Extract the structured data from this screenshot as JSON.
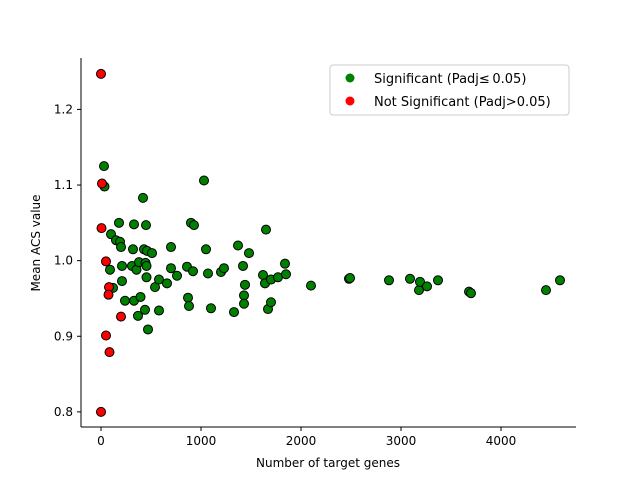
{
  "chart_data": {
    "type": "scatter",
    "xlabel": "Number of target genes",
    "ylabel": "Mean ACS value",
    "xlim": [
      -200,
      4750
    ],
    "ylim": [
      0.78,
      1.268
    ],
    "xticks": [
      0,
      1000,
      2000,
      3000,
      4000
    ],
    "yticks": [
      0.8,
      0.9,
      1.0,
      1.1,
      1.2
    ],
    "xtick_labels": [
      "0",
      "1000",
      "2000",
      "3000",
      "4000"
    ],
    "ytick_labels": [
      "0.8",
      "0.9",
      "1.0",
      "1.1",
      "1.2"
    ],
    "grid": false,
    "legend_position": "top-right",
    "series": [
      {
        "name": "Significant (Padj≤ 0.05)",
        "color": "#008000",
        "points": [
          [
            30,
            1.125
          ],
          [
            35,
            1.098
          ],
          [
            100,
            1.035
          ],
          [
            150,
            1.027
          ],
          [
            180,
            1.05
          ],
          [
            190,
            1.025
          ],
          [
            200,
            1.018
          ],
          [
            90,
            0.988
          ],
          [
            120,
            0.964
          ],
          [
            210,
            0.993
          ],
          [
            210,
            0.973
          ],
          [
            240,
            0.947
          ],
          [
            310,
            0.993
          ],
          [
            320,
            1.015
          ],
          [
            330,
            1.048
          ],
          [
            330,
            0.947
          ],
          [
            355,
            0.988
          ],
          [
            370,
            0.927
          ],
          [
            380,
            0.998
          ],
          [
            395,
            0.952
          ],
          [
            420,
            1.083
          ],
          [
            430,
            1.015
          ],
          [
            440,
            0.935
          ],
          [
            445,
            0.997
          ],
          [
            450,
            1.047
          ],
          [
            455,
            0.993
          ],
          [
            455,
            0.978
          ],
          [
            460,
            1.013
          ],
          [
            470,
            0.909
          ],
          [
            510,
            1.01
          ],
          [
            540,
            0.965
          ],
          [
            580,
            0.934
          ],
          [
            580,
            0.975
          ],
          [
            660,
            0.97
          ],
          [
            700,
            1.018
          ],
          [
            700,
            0.99
          ],
          [
            760,
            0.98
          ],
          [
            860,
            0.992
          ],
          [
            870,
            0.951
          ],
          [
            880,
            0.94
          ],
          [
            900,
            1.05
          ],
          [
            920,
            0.986
          ],
          [
            930,
            1.047
          ],
          [
            1030,
            1.106
          ],
          [
            1050,
            1.015
          ],
          [
            1070,
            0.983
          ],
          [
            1100,
            0.937
          ],
          [
            1200,
            0.985
          ],
          [
            1230,
            0.99
          ],
          [
            1330,
            0.932
          ],
          [
            1370,
            1.02
          ],
          [
            1420,
            0.993
          ],
          [
            1430,
            0.954
          ],
          [
            1430,
            0.943
          ],
          [
            1440,
            0.968
          ],
          [
            1480,
            1.01
          ],
          [
            1620,
            0.981
          ],
          [
            1640,
            0.97
          ],
          [
            1650,
            1.041
          ],
          [
            1670,
            0.936
          ],
          [
            1700,
            0.945
          ],
          [
            1700,
            0.975
          ],
          [
            1770,
            0.978
          ],
          [
            1840,
            0.996
          ],
          [
            1850,
            0.982
          ],
          [
            2100,
            0.967
          ],
          [
            2480,
            0.976
          ],
          [
            2490,
            0.977
          ],
          [
            2880,
            0.974
          ],
          [
            3090,
            0.976
          ],
          [
            3180,
            0.961
          ],
          [
            3190,
            0.972
          ],
          [
            3260,
            0.966
          ],
          [
            3370,
            0.974
          ],
          [
            3680,
            0.959
          ],
          [
            3700,
            0.957
          ],
          [
            4450,
            0.961
          ],
          [
            4590,
            0.974
          ]
        ]
      },
      {
        "name": "Not Significant (Padj>0.05)",
        "color": "#ff0000",
        "points": [
          [
            0,
            1.247
          ],
          [
            10,
            1.102
          ],
          [
            5,
            1.043
          ],
          [
            50,
            0.999
          ],
          [
            80,
            0.965
          ],
          [
            75,
            0.955
          ],
          [
            50,
            0.901
          ],
          [
            85,
            0.879
          ],
          [
            200,
            0.926
          ],
          [
            0,
            0.8
          ]
        ]
      }
    ]
  }
}
